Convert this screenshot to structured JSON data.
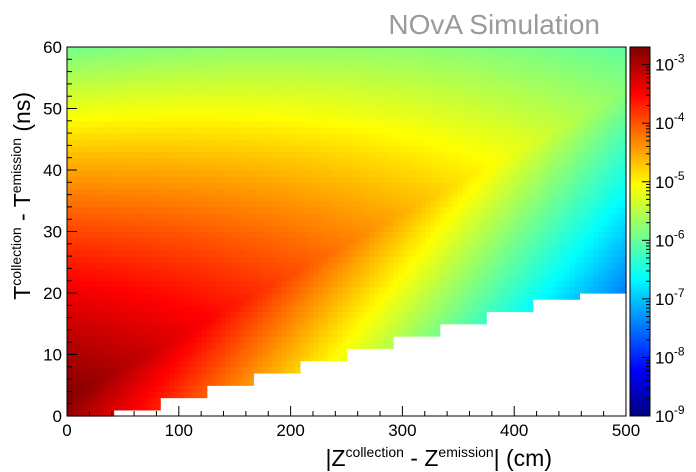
{
  "watermark": "NOvA Simulation",
  "chart_data": {
    "type": "heatmap",
    "title": "",
    "xlabel": {
      "main": "|Z",
      "sup1": "collection",
      "mid": " - Z",
      "sup2": "emission",
      "end": "| (cm)"
    },
    "ylabel": {
      "main": "T",
      "sup1": "collection",
      "mid": " - T",
      "sup2": "emission",
      "end": " (ns)"
    },
    "xlim": [
      0,
      500
    ],
    "ylim": [
      0,
      60
    ],
    "x_ticks": [
      0,
      100,
      200,
      300,
      400,
      500
    ],
    "y_ticks": [
      0,
      10,
      20,
      30,
      40,
      50,
      60
    ],
    "zscale": "log",
    "zlim": [
      1e-09,
      0.002
    ],
    "z_ticks": [
      {
        "value": 1e-09,
        "label": "10",
        "exp": "-9"
      },
      {
        "value": 1e-08,
        "label": "10",
        "exp": "-8"
      },
      {
        "value": 1e-07,
        "label": "10",
        "exp": "-7"
      },
      {
        "value": 1e-06,
        "label": "10",
        "exp": "-6"
      },
      {
        "value": 1e-05,
        "label": "10",
        "exp": "-5"
      },
      {
        "value": 0.0001,
        "label": "10",
        "exp": "-4"
      },
      {
        "value": 0.001,
        "label": "10",
        "exp": "-3"
      }
    ],
    "colormap": [
      "#00007f",
      "#0000ff",
      "#0080ff",
      "#00ffff",
      "#80ff80",
      "#ffff00",
      "#ff8000",
      "#ff0000",
      "#7f0000"
    ],
    "step_boundary": {
      "description": "minimum time vs distance (empty below)",
      "x_step_cm": 41.67,
      "t_step_ns": 1.9,
      "points": [
        [
          0,
          0
        ],
        [
          41.7,
          1.9
        ],
        [
          83.3,
          3.8
        ],
        [
          125,
          5.7
        ],
        [
          166.7,
          7.6
        ],
        [
          208.3,
          9.5
        ],
        [
          250,
          11.4
        ],
        [
          291.7,
          13.3
        ],
        [
          333.3,
          15.2
        ],
        [
          375,
          17.1
        ],
        [
          416.7,
          19.0
        ],
        [
          458.3,
          20.9
        ],
        [
          500,
          22.8
        ]
      ]
    }
  }
}
